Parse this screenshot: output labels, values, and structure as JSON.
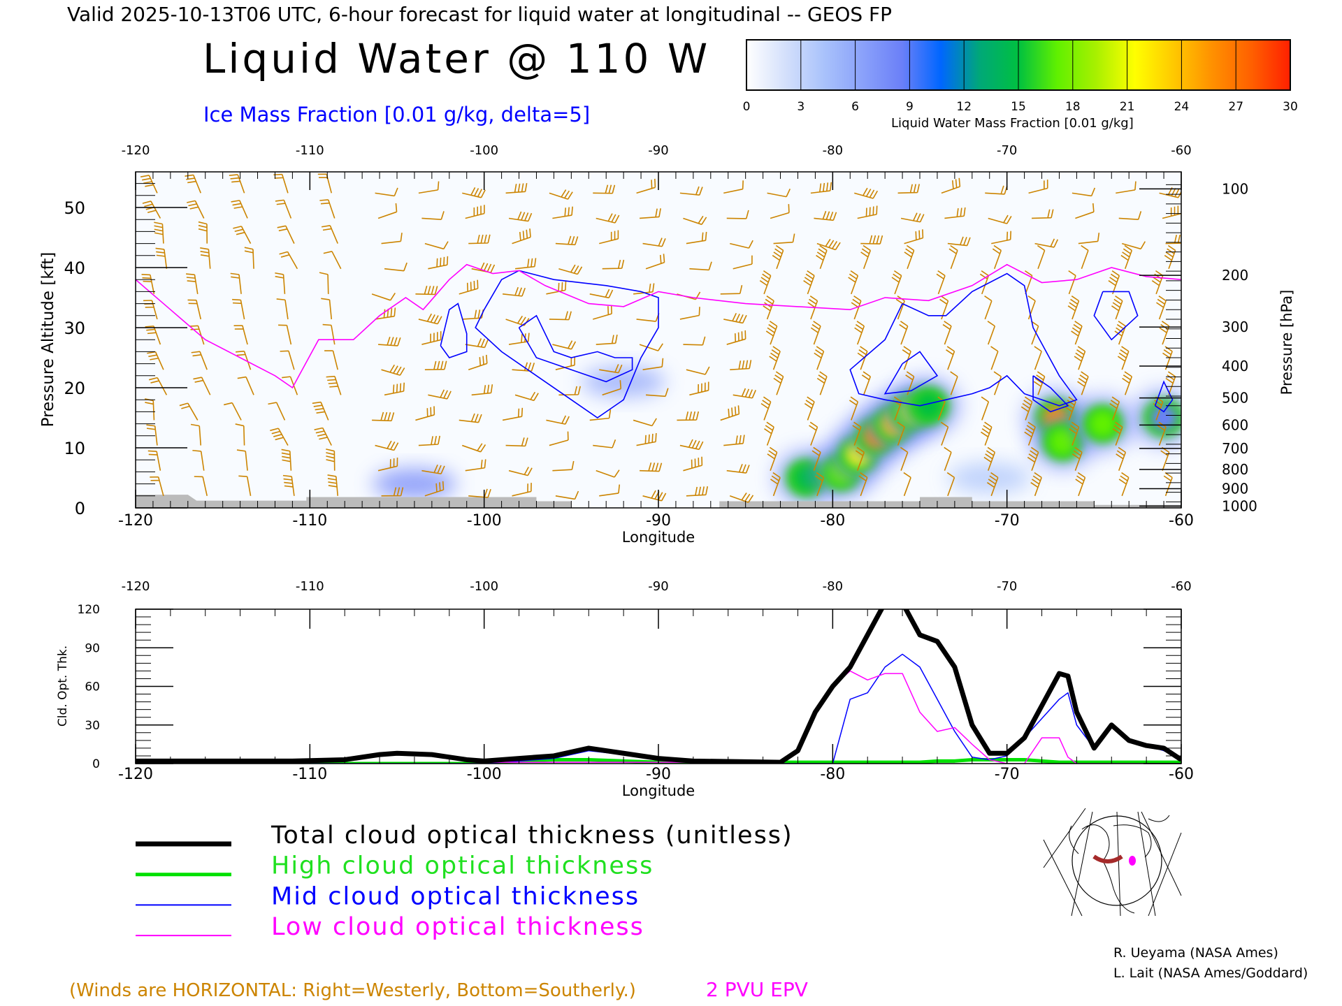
{
  "header": {
    "valid_line": "Valid 2025-10-13T06 UTC, 6-hour forecast for liquid water at longitudinal -- GEOS FP",
    "main_title": "Liquid Water @ 110 W",
    "ice_label": "Ice Mass Fraction [0.01 g/kg, delta=5]"
  },
  "colorbar": {
    "ticks": [
      "0",
      "3",
      "6",
      "9",
      "12",
      "15",
      "18",
      "21",
      "24",
      "27",
      "30"
    ],
    "label": "Liquid Water Mass Fraction [0.01 g/kg]",
    "colors": [
      "#ffffff",
      "#d4e0fb",
      "#a9c2fb",
      "#8aa1fa",
      "#6b80f8",
      "#0066ff",
      "#00a878",
      "#00c040",
      "#60f000",
      "#a8f000",
      "#ffff00",
      "#ffc800",
      "#ff9000",
      "#ff6000",
      "#ff2000"
    ]
  },
  "chart_data": [
    {
      "type": "heatmap",
      "title": "Liquid Water @ 110 W",
      "xlabel": "Longitude",
      "ylabel": "Pressure Altitude [kft]",
      "ylabel_right": "Pressure [hPa]",
      "xlim": [
        -120,
        -60
      ],
      "ylim": [
        0,
        56
      ],
      "x_ticks": [
        "-120",
        "-110",
        "-100",
        "-90",
        "-80",
        "-70",
        "-60"
      ],
      "x_tick_values": [
        -120,
        -110,
        -100,
        -90,
        -80,
        -70,
        -60
      ],
      "y_ticks": [
        "0",
        "10",
        "20",
        "30",
        "40",
        "50"
      ],
      "y_tick_values": [
        0,
        10,
        20,
        30,
        40,
        50
      ],
      "pressure_ticks": [
        {
          "label": "100",
          "kft": 53.1
        },
        {
          "label": "200",
          "kft": 38.7
        },
        {
          "label": "300",
          "kft": 30.1
        },
        {
          "label": "400",
          "kft": 23.6
        },
        {
          "label": "500",
          "kft": 18.3
        },
        {
          "label": "600",
          "kft": 13.8
        },
        {
          "label": "700",
          "kft": 9.9
        },
        {
          "label": "800",
          "kft": 6.4
        },
        {
          "label": "900",
          "kft": 3.2
        },
        {
          "label": "1000",
          "kft": 0.3
        }
      ],
      "liquid_water_blobs": [
        {
          "lon": -81.5,
          "kft": 5,
          "value": 15
        },
        {
          "lon": -79.5,
          "kft": 6,
          "value": 18
        },
        {
          "lon": -78.5,
          "kft": 9,
          "value": 22
        },
        {
          "lon": -77.5,
          "kft": 12,
          "value": 25
        },
        {
          "lon": -76.5,
          "kft": 14,
          "value": 24
        },
        {
          "lon": -75.5,
          "kft": 16,
          "value": 20
        },
        {
          "lon": -74.5,
          "kft": 17,
          "value": 16
        },
        {
          "lon": -67.2,
          "kft": 15,
          "value": 26
        },
        {
          "lon": -66.8,
          "kft": 11,
          "value": 17
        },
        {
          "lon": -64.5,
          "kft": 14,
          "value": 18
        },
        {
          "lon": -61,
          "kft": 15,
          "value": 9
        }
      ],
      "ice_blobs": [
        {
          "lon": -92,
          "kft": 21,
          "value": 6
        },
        {
          "lon": -104,
          "kft": 4,
          "value": 8
        },
        {
          "lon": -71,
          "kft": 5,
          "value": 4
        }
      ],
      "ice_contours": [
        [
          [
            -102.5,
            27
          ],
          [
            -102,
            33
          ],
          [
            -101.5,
            34
          ],
          [
            -101,
            29
          ],
          [
            -101,
            26
          ],
          [
            -102,
            25
          ],
          [
            -102.5,
            27
          ]
        ],
        [
          [
            -100,
            33
          ],
          [
            -99,
            38
          ],
          [
            -98,
            39.5
          ],
          [
            -96,
            38
          ],
          [
            -93,
            37
          ],
          [
            -91,
            36
          ],
          [
            -90,
            35
          ],
          [
            -90,
            30
          ],
          [
            -91,
            25
          ],
          [
            -92,
            18
          ],
          [
            -93.5,
            15
          ],
          [
            -95,
            18
          ],
          [
            -97,
            22
          ],
          [
            -99,
            26
          ],
          [
            -100.5,
            30
          ],
          [
            -100,
            33
          ]
        ],
        [
          [
            -98,
            30
          ],
          [
            -97,
            32
          ],
          [
            -96,
            26
          ],
          [
            -95,
            25
          ],
          [
            -93.5,
            26
          ],
          [
            -92.5,
            25
          ],
          [
            -91.5,
            25
          ],
          [
            -91.5,
            23
          ],
          [
            -93,
            21
          ],
          [
            -95,
            23
          ],
          [
            -97,
            25
          ],
          [
            -98,
            30
          ]
        ],
        [
          [
            -76,
            34
          ],
          [
            -74.5,
            32
          ],
          [
            -73.5,
            32
          ],
          [
            -72,
            36
          ],
          [
            -70,
            39
          ],
          [
            -69,
            37
          ],
          [
            -68.5,
            30
          ],
          [
            -67,
            22
          ],
          [
            -66,
            18
          ],
          [
            -67,
            17
          ],
          [
            -69,
            19
          ],
          [
            -70,
            22
          ],
          [
            -71,
            20
          ],
          [
            -72,
            19
          ],
          [
            -73.5,
            18
          ],
          [
            -75,
            17
          ],
          [
            -77,
            18
          ],
          [
            -78.5,
            19
          ],
          [
            -79,
            23
          ],
          [
            -77,
            28
          ],
          [
            -76,
            34
          ]
        ],
        [
          [
            -76,
            24
          ],
          [
            -75,
            26
          ],
          [
            -74,
            22
          ],
          [
            -75.5,
            19.5
          ],
          [
            -77,
            19
          ],
          [
            -76,
            24
          ]
        ],
        [
          [
            -64.5,
            36
          ],
          [
            -63,
            36
          ],
          [
            -62.5,
            32
          ],
          [
            -64,
            28
          ],
          [
            -65,
            32
          ],
          [
            -64.5,
            36
          ]
        ],
        [
          [
            -61.5,
            17
          ],
          [
            -61,
            21
          ],
          [
            -60.5,
            18
          ],
          [
            -61,
            16
          ],
          [
            -61.5,
            17
          ]
        ],
        [
          [
            -68.5,
            22
          ],
          [
            -67.5,
            20
          ],
          [
            -66.5,
            17
          ],
          [
            -67.5,
            16
          ],
          [
            -68.5,
            18
          ],
          [
            -68.5,
            22
          ]
        ]
      ],
      "epv_2pvu": [
        [
          -120,
          38
        ],
        [
          -118,
          33
        ],
        [
          -116,
          28
        ],
        [
          -114,
          25
        ],
        [
          -112,
          22
        ],
        [
          -111,
          20
        ],
        [
          -109.5,
          28
        ],
        [
          -107.5,
          28
        ],
        [
          -106,
          32
        ],
        [
          -104.5,
          35
        ],
        [
          -103.5,
          33
        ],
        [
          -102,
          38
        ],
        [
          -101,
          40.5
        ],
        [
          -99.5,
          39
        ],
        [
          -98,
          39.5
        ],
        [
          -96.5,
          37
        ],
        [
          -94,
          34
        ],
        [
          -92,
          33.5
        ],
        [
          -90,
          36
        ],
        [
          -88,
          35
        ],
        [
          -85,
          34
        ],
        [
          -82,
          33.5
        ],
        [
          -79,
          33
        ],
        [
          -77,
          35
        ],
        [
          -74.5,
          34.5
        ],
        [
          -72,
          37
        ],
        [
          -70,
          40.5
        ],
        [
          -68,
          37.5
        ],
        [
          -66,
          38
        ],
        [
          -64,
          40
        ],
        [
          -62,
          38.5
        ],
        [
          -60,
          38
        ]
      ],
      "terrain": [
        [
          -120,
          2.2
        ],
        [
          -117,
          2.2
        ],
        [
          -116.5,
          1.2
        ],
        [
          -110.2,
          1.2
        ],
        [
          -110.2,
          1.8
        ],
        [
          -97,
          1.8
        ],
        [
          -97,
          1.1
        ],
        [
          -95,
          1.1
        ],
        [
          -95,
          0
        ],
        [
          -86.5,
          0
        ],
        [
          -86.5,
          1.1
        ],
        [
          -75,
          1.1
        ],
        [
          -75,
          1.8
        ],
        [
          -72,
          1.8
        ],
        [
          -72,
          1.1
        ],
        [
          -65,
          1.1
        ],
        [
          -65,
          0.5
        ],
        [
          -60,
          0.5
        ]
      ]
    },
    {
      "type": "line",
      "xlabel": "Longitude",
      "ylabel": "Cld. Opt. Thk.",
      "xlim": [
        -120,
        -60
      ],
      "ylim": [
        0,
        120
      ],
      "x_ticks": [
        "-120",
        "-110",
        "-100",
        "-90",
        "-80",
        "-70",
        "-60"
      ],
      "x_tick_values": [
        -120,
        -110,
        -100,
        -90,
        -80,
        -70,
        -60
      ],
      "y_ticks": [
        "0",
        "30",
        "60",
        "90",
        "120"
      ],
      "y_tick_values": [
        0,
        30,
        60,
        90,
        120
      ],
      "x": [
        -120,
        -111,
        -108,
        -106,
        -105,
        -103,
        -101,
        -100,
        -98,
        -96,
        -94,
        -92,
        -90,
        -88,
        -83,
        -82,
        -81,
        -80,
        -79,
        -78,
        -77,
        -76,
        -75,
        -74,
        -73,
        -72,
        -71,
        -70,
        -69,
        -68,
        -67,
        -66.5,
        -66,
        -65,
        -64,
        -63,
        -62,
        -61,
        -60
      ],
      "series": [
        {
          "name": "Total cloud optical thickness (unitless)",
          "color": "#000000",
          "values": [
            2,
            2,
            3,
            7,
            8,
            7,
            3,
            2,
            4,
            6,
            12,
            8,
            4,
            2,
            1,
            10,
            40,
            60,
            75,
            100,
            125,
            125,
            100,
            95,
            75,
            30,
            8,
            8,
            20,
            45,
            70,
            68,
            40,
            12,
            30,
            18,
            14,
            12,
            3
          ]
        },
        {
          "name": "High cloud optical thickness",
          "color": "#00e000",
          "values": [
            0,
            0,
            0,
            0,
            0,
            0,
            0,
            1,
            2,
            3,
            3,
            2,
            1,
            1,
            1,
            1,
            1,
            1,
            1,
            1,
            1,
            1,
            1,
            2,
            2,
            3,
            3,
            3,
            3,
            2,
            1,
            1,
            1,
            1,
            1,
            1,
            1,
            1,
            1
          ]
        },
        {
          "name": "Mid cloud optical thickness",
          "color": "#0000ff",
          "values": [
            0,
            0,
            0,
            0,
            0,
            0,
            0,
            0,
            2,
            4,
            10,
            7,
            3,
            1,
            0,
            0,
            0,
            0,
            50,
            55,
            75,
            85,
            75,
            50,
            25,
            5,
            3,
            6,
            20,
            35,
            50,
            55,
            30,
            12,
            30,
            18,
            14,
            10,
            3
          ]
        },
        {
          "name": "Low cloud optical thickness",
          "color": "#ff00ff",
          "values": [
            2,
            2,
            3,
            7,
            8,
            7,
            3,
            1,
            1,
            1,
            1,
            1,
            1,
            1,
            1,
            10,
            40,
            60,
            72,
            65,
            70,
            70,
            40,
            25,
            28,
            15,
            3,
            0,
            0,
            20,
            20,
            5,
            0,
            0,
            0,
            0,
            0,
            0,
            0
          ]
        }
      ]
    }
  ],
  "legend": [
    {
      "label": "Total cloud optical thickness (unitless)",
      "color": "#000000"
    },
    {
      "label": "High cloud optical thickness",
      "color": "#00e000"
    },
    {
      "label": "Mid cloud optical thickness",
      "color": "#0000ff"
    },
    {
      "label": "Low cloud optical thickness",
      "color": "#ff00ff"
    }
  ],
  "credits": [
    "R. Ueyama (NASA Ames)",
    "L. Lait (NASA Ames/Goddard)"
  ],
  "footer": {
    "winds_note": "(Winds are HORIZONTAL: Right=Westerly, Bottom=Southerly.)",
    "epv_note": "2 PVU EPV"
  },
  "colors": {
    "wind": "#cc8400",
    "epv": "#ff00ff",
    "ice": "#0000ff",
    "terrain": "#bbbbbb"
  }
}
